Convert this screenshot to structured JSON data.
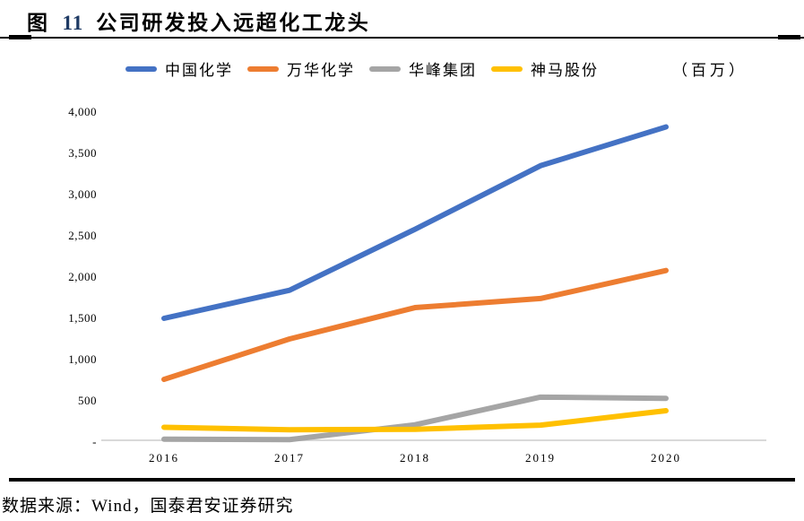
{
  "figure": {
    "title_prefix": "图",
    "title_number": "11",
    "title_text": "公司研发投入远超化工龙头",
    "source": "数据来源：Wind，国泰君安证券研究"
  },
  "chart_data": {
    "type": "line",
    "title": "公司研发投入远超化工龙头",
    "unit_label": "（百万）",
    "categories": [
      "2016",
      "2017",
      "2018",
      "2019",
      "2020"
    ],
    "series": [
      {
        "name": "中国化学",
        "color": "#4472C4",
        "values": [
          1500,
          1840,
          2580,
          3350,
          3820
        ]
      },
      {
        "name": "万华化学",
        "color": "#ED7D31",
        "values": [
          760,
          1250,
          1630,
          1740,
          2080
        ]
      },
      {
        "name": "华峰集团",
        "color": "#A5A5A5",
        "values": [
          35,
          30,
          210,
          545,
          530
        ]
      },
      {
        "name": "神马股份",
        "color": "#FFC000",
        "values": [
          180,
          150,
          155,
          205,
          380
        ]
      }
    ],
    "ylim": [
      0,
      4000
    ],
    "ytick_values": [
      0,
      500,
      1000,
      1500,
      2000,
      2500,
      3000,
      3500,
      4000
    ],
    "ytick_labels": [
      "-",
      "500",
      "1,000",
      "1,500",
      "2,000",
      "2,500",
      "3,000",
      "3,500",
      "4,000"
    ],
    "xlabel": "",
    "ylabel": "",
    "legend_position": "top",
    "grid": false,
    "axis_line_color": "#D9D9D9"
  }
}
